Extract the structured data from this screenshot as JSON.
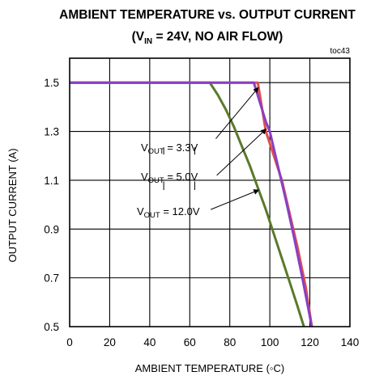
{
  "chart_data": {
    "type": "line",
    "title_line1": "AMBIENT TEMPERATURE vs. OUTPUT CURRENT",
    "title_line2": {
      "prefix": "(V",
      "subscript": "IN",
      "suffix": " = 24V, NO AIR FLOW)"
    },
    "figure_id": "toc43",
    "xlabel": "AMBIENT TEMPERATURE (◦C)",
    "ylabel": "OUTPUT CURRENT (A)",
    "xlim": [
      0,
      140
    ],
    "ylim": [
      0.5,
      1.6
    ],
    "x_ticks": [
      0,
      20,
      40,
      60,
      80,
      100,
      120,
      140
    ],
    "y_ticks": [
      0.5,
      0.7,
      0.9,
      1.1,
      1.3,
      1.5
    ],
    "grid": true,
    "series": [
      {
        "name_prefix": "V",
        "name_sub": "OUT",
        "name_suffix": " = 3.3V",
        "color": "#e0504c",
        "points": [
          [
            0,
            1.5
          ],
          [
            92,
            1.5
          ],
          [
            94,
            1.5
          ],
          [
            96,
            1.4
          ],
          [
            98,
            1.3
          ],
          [
            102,
            1.2
          ],
          [
            106,
            1.1
          ],
          [
            110,
            0.96
          ],
          [
            114,
            0.82
          ],
          [
            118,
            0.66
          ],
          [
            121,
            0.5
          ]
        ]
      },
      {
        "name_prefix": "V",
        "name_sub": "OUT",
        "name_suffix": " = 5.0V",
        "color": "#8a3fc4",
        "points": [
          [
            0,
            1.5
          ],
          [
            90,
            1.5
          ],
          [
            92,
            1.5
          ],
          [
            95,
            1.42
          ],
          [
            98,
            1.34
          ],
          [
            100,
            1.3
          ],
          [
            104,
            1.16
          ],
          [
            108,
            1.02
          ],
          [
            112,
            0.87
          ],
          [
            116,
            0.71
          ],
          [
            121,
            0.5
          ]
        ]
      },
      {
        "name_prefix": "V",
        "name_sub": "OUT",
        "name_suffix": " = 12.0V",
        "color": "#5a7a2a",
        "points": [
          [
            0,
            1.5
          ],
          [
            70,
            1.5
          ],
          [
            74,
            1.45
          ],
          [
            78,
            1.39
          ],
          [
            82,
            1.32
          ],
          [
            86,
            1.24
          ],
          [
            90,
            1.16
          ],
          [
            94,
            1.07
          ],
          [
            98,
            0.98
          ],
          [
            102,
            0.88
          ],
          [
            106,
            0.78
          ],
          [
            110,
            0.68
          ],
          [
            114,
            0.58
          ],
          [
            117,
            0.5
          ]
        ]
      }
    ]
  },
  "colors": {
    "grid": "#000000",
    "frame": "#000000"
  }
}
